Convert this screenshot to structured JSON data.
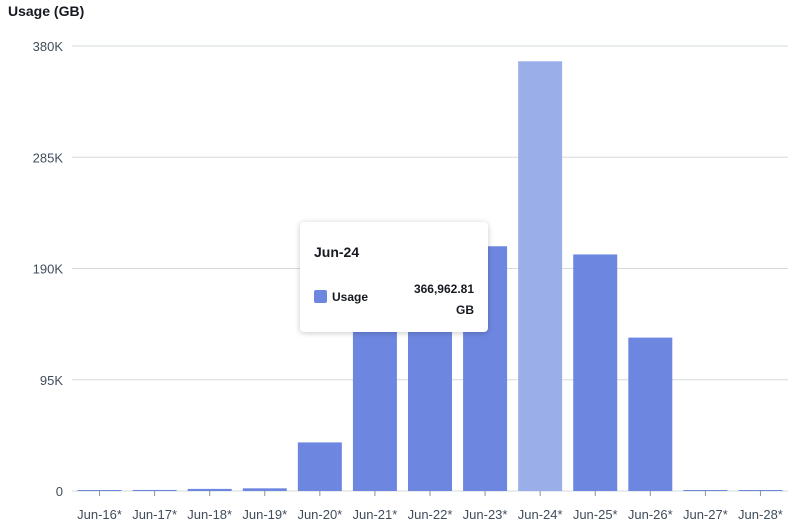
{
  "chart_data": {
    "type": "bar",
    "ylabel": "Usage (GB)",
    "categories": [
      "Jun-16*",
      "Jun-17*",
      "Jun-18*",
      "Jun-19*",
      "Jun-20*",
      "Jun-21*",
      "Jun-22*",
      "Jun-23*",
      "Jun-24*",
      "Jun-25*",
      "Jun-26*",
      "Jun-27*",
      "Jun-28*"
    ],
    "series": [
      {
        "name": "Usage",
        "values": [
          600,
          900,
          1800,
          2300,
          41500,
          140000,
          140000,
          209000,
          366962.81,
          202000,
          131000,
          400,
          200
        ]
      }
    ],
    "yticks": [
      "0",
      "95K",
      "190K",
      "285K",
      "380K"
    ],
    "ylim": [
      0,
      380000
    ],
    "grid": true,
    "colors": {
      "bar": "#6d87e0",
      "bar_highlight": "#9aaeea",
      "grid": "#d5dbdb",
      "axis_text": "#414d5c"
    },
    "highlight_index": 8
  },
  "tooltip": {
    "title": "Jun-24",
    "series_label": "Usage",
    "value": "366,962.81",
    "unit": "GB"
  }
}
